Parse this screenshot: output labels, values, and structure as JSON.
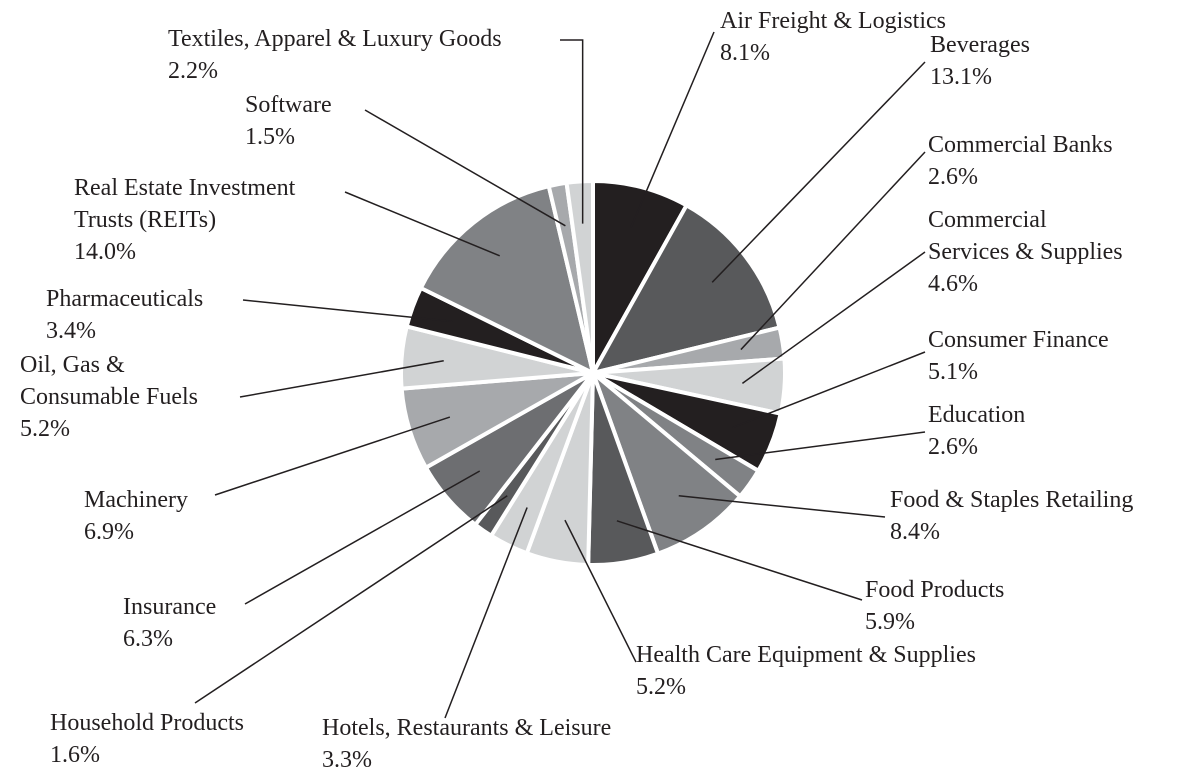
{
  "chart_data": {
    "type": "pie",
    "categories": [
      "Air Freight & Logistics",
      "Beverages",
      "Commercial Banks",
      "Commercial\nServices & Supplies",
      "Consumer Finance",
      "Education",
      "Food & Staples Retailing",
      "Food Products",
      "Health Care Equipment & Supplies",
      "Hotels, Restaurants & Leisure",
      "Household Products",
      "Insurance",
      "Machinery",
      "Oil, Gas &\nConsumable Fuels",
      "Pharmaceuticals",
      "Real Estate Investment\nTrusts (REITs)",
      "Software",
      "Textiles, Apparel & Luxury Goods"
    ],
    "values": [
      8.1,
      13.1,
      2.6,
      4.6,
      5.1,
      2.6,
      8.4,
      5.9,
      5.2,
      3.3,
      1.6,
      6.3,
      6.9,
      5.2,
      3.4,
      14.0,
      1.5,
      2.2
    ],
    "value_labels": [
      "8.1%",
      "13.1%",
      "2.6%",
      "4.6%",
      "5.1%",
      "2.6%",
      "8.4%",
      "5.9%",
      "5.2%",
      "3.3%",
      "1.6%",
      "6.3%",
      "6.9%",
      "5.2%",
      "3.4%",
      "14.0%",
      "1.5%",
      "2.2%"
    ],
    "colors": [
      "#231f20",
      "#58595b",
      "#a7a9ac",
      "#d1d3d4",
      "#231f20",
      "#808285",
      "#808285",
      "#58595b",
      "#d1d3d4",
      "#d1d3d4",
      "#58595b",
      "#6d6e71",
      "#a7a9ac",
      "#d1d3d4",
      "#231f20",
      "#808285",
      "#a7a9ac",
      "#d1d3d4"
    ]
  }
}
